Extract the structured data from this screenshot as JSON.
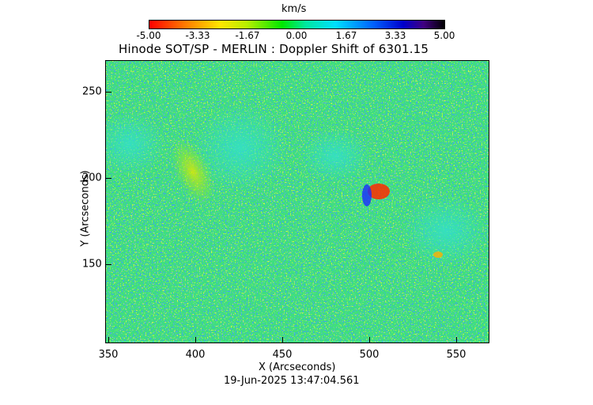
{
  "colorbar": {
    "unit_label": "km/s",
    "ticks": [
      "-5.00",
      "-3.33",
      "-1.67",
      "0.00",
      "1.67",
      "3.33",
      "5.00"
    ],
    "range": [
      -5.0,
      5.0
    ]
  },
  "plot": {
    "title": "Hinode SOT/SP - MERLIN : Doppler Shift of 6301.15",
    "xlabel": "X (Arcseconds)",
    "ylabel": "Y (Arcseconds)",
    "x_ticks": [
      "350",
      "400",
      "450",
      "500",
      "550"
    ],
    "y_ticks": [
      "250",
      "200",
      "150"
    ],
    "xlim": [
      350,
      570
    ],
    "ylim": [
      102,
      268
    ]
  },
  "timestamp": "19-Jun-2025 13:47:04.561",
  "colors": {
    "background_field": "#33e08a",
    "redshift": "#0000cc",
    "blueshift": "#ff0000",
    "frame": "#000000"
  }
}
